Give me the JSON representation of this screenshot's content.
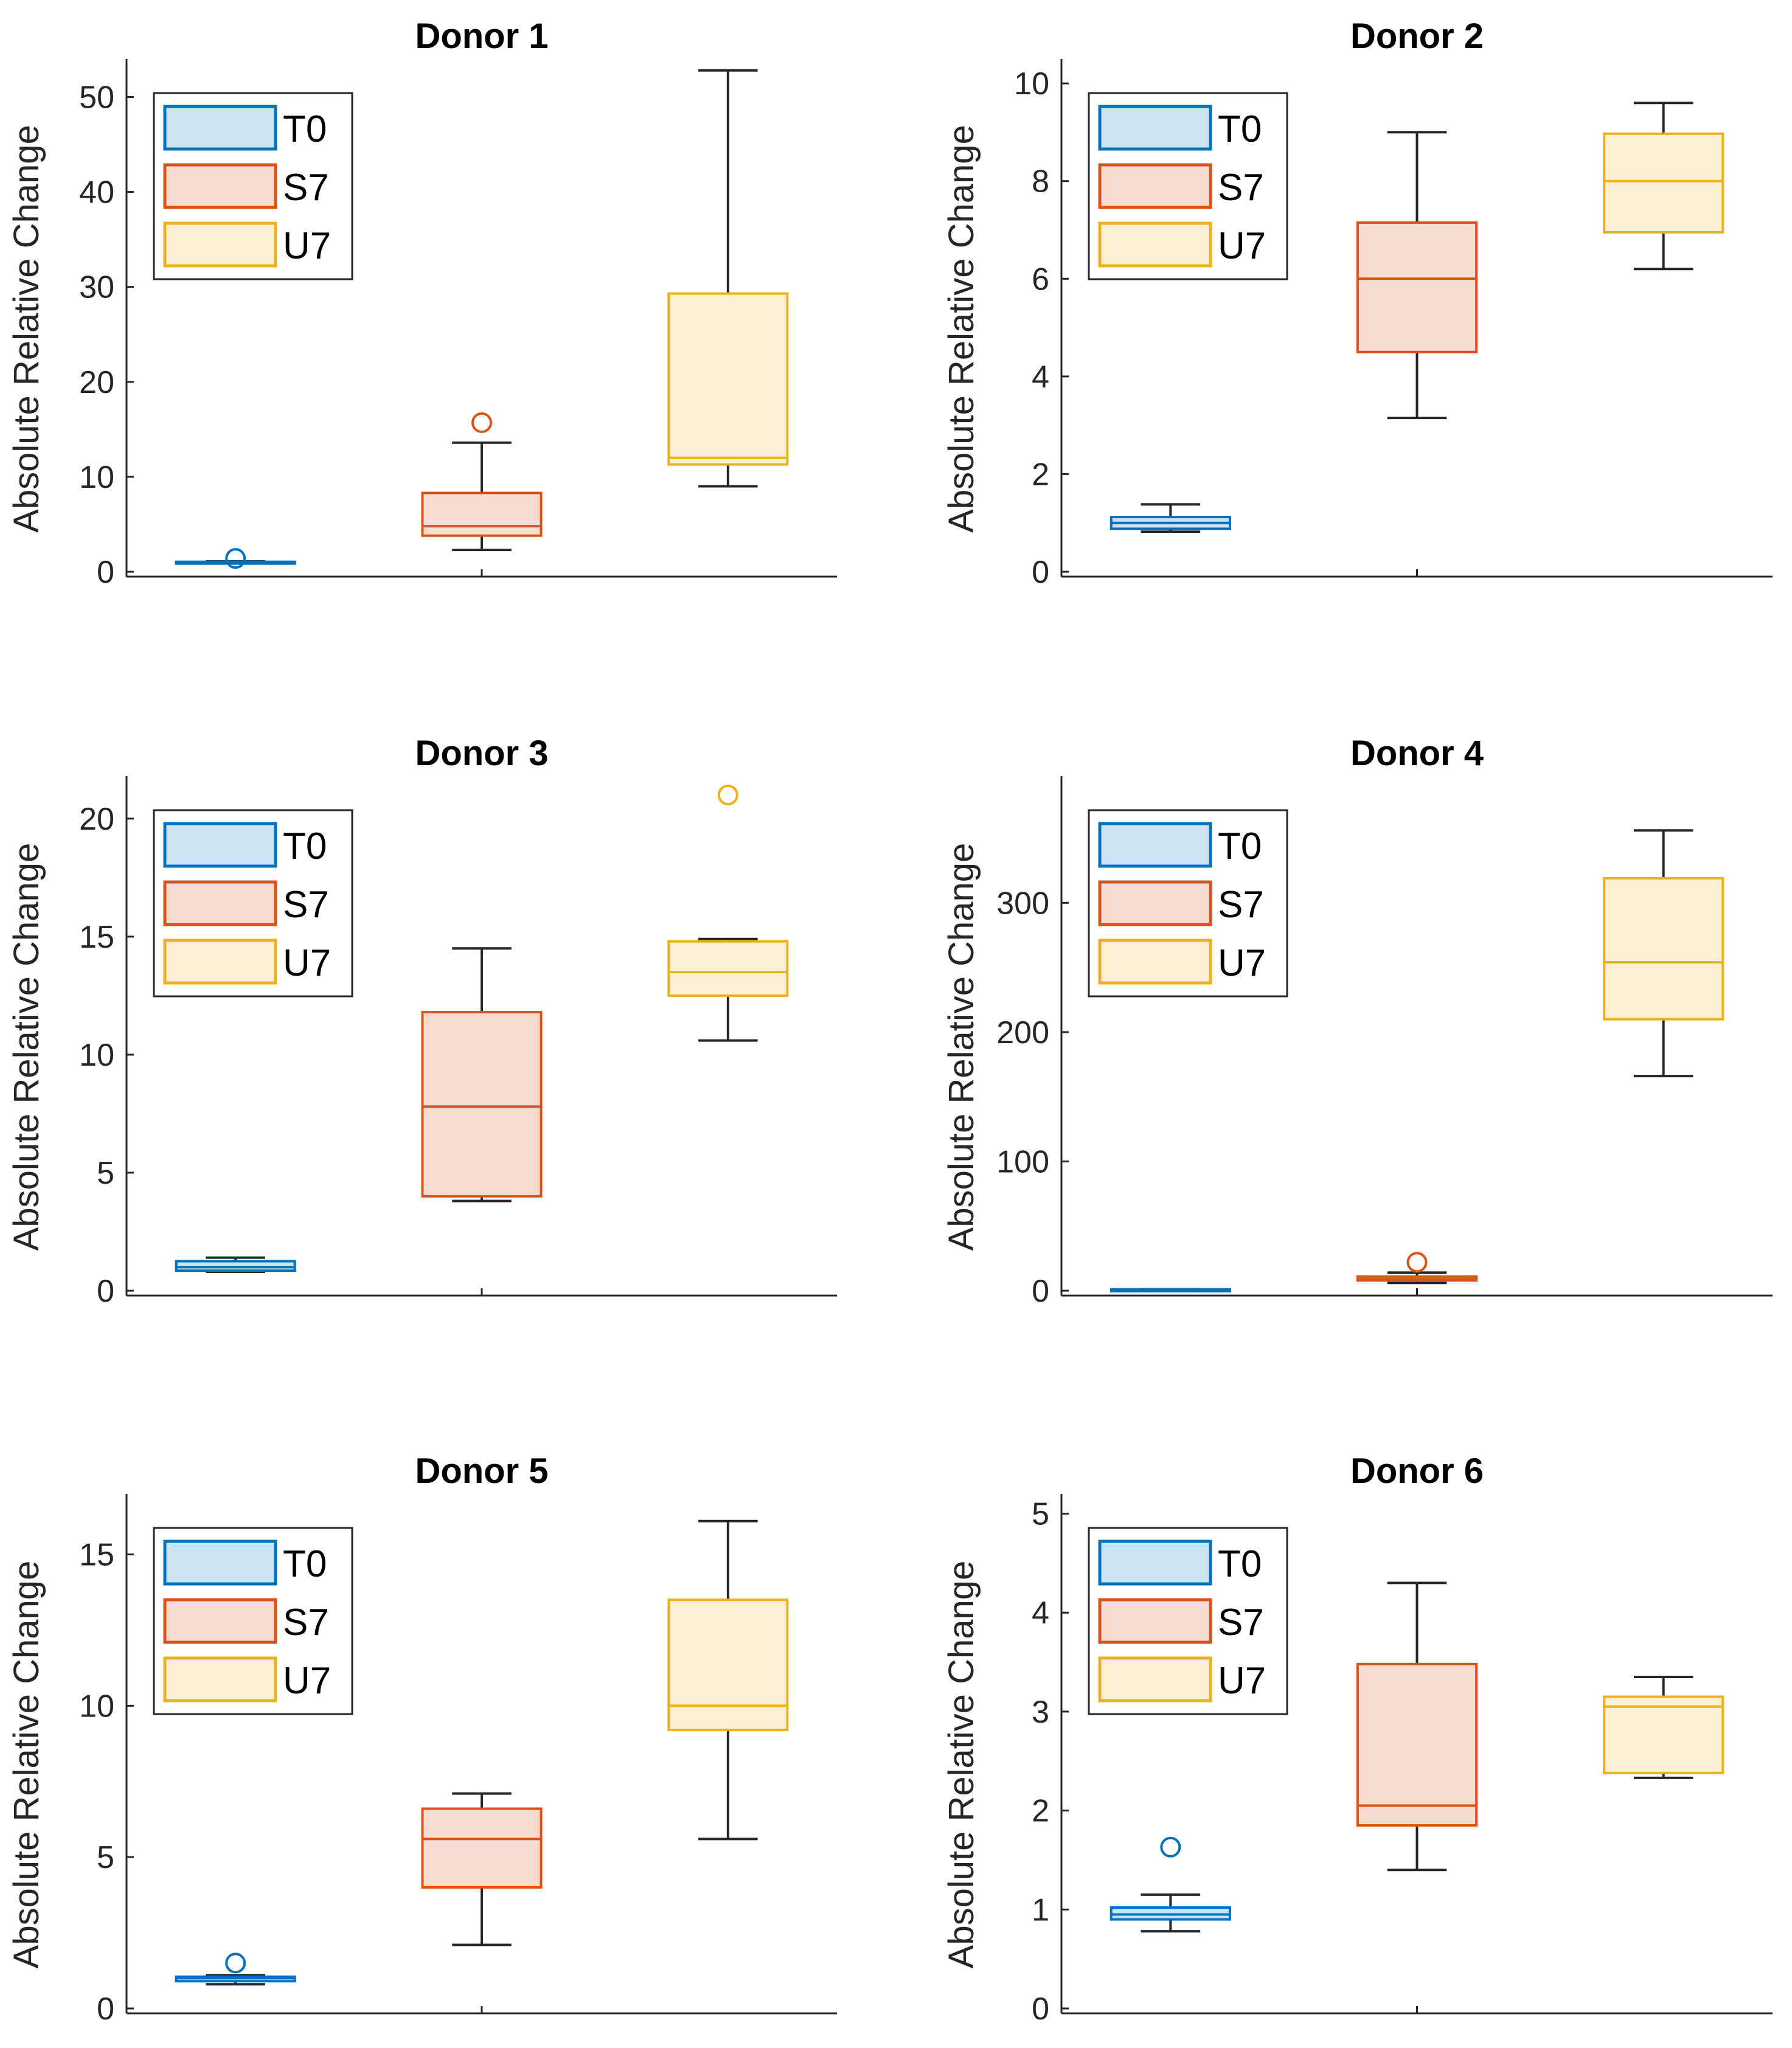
{
  "chart_data": [
    {
      "type": "box",
      "title": "Donor 1",
      "ylabel": "Absolute Relative Change",
      "ylim": [
        0,
        54
      ],
      "yticks": [
        0,
        10,
        20,
        30,
        40,
        50
      ],
      "legend": {
        "placement": "top-left",
        "entries": [
          "T0",
          "S7",
          "U7"
        ]
      },
      "series": [
        {
          "name": "T0",
          "min": 0.9,
          "q1": 0.95,
          "median": 1.0,
          "q3": 1.05,
          "max": 1.1,
          "outliers": [
            1.4
          ]
        },
        {
          "name": "S7",
          "min": 2.3,
          "q1": 3.8,
          "median": 4.8,
          "q3": 8.3,
          "max": 13.6,
          "outliers": [
            15.7
          ]
        },
        {
          "name": "U7",
          "min": 9.0,
          "q1": 11.3,
          "median": 12.0,
          "q3": 29.3,
          "max": 52.8,
          "outliers": []
        }
      ]
    },
    {
      "type": "box",
      "title": "Donor 2",
      "ylabel": "Absolute Relative Change",
      "ylim": [
        0,
        10.5
      ],
      "yticks": [
        0,
        2,
        4,
        6,
        8,
        10
      ],
      "legend": {
        "placement": "top-left",
        "entries": [
          "T0",
          "S7",
          "U7"
        ]
      },
      "series": [
        {
          "name": "T0",
          "min": 0.82,
          "q1": 0.88,
          "median": 1.0,
          "q3": 1.12,
          "max": 1.38,
          "outliers": []
        },
        {
          "name": "S7",
          "min": 3.15,
          "q1": 4.5,
          "median": 6.0,
          "q3": 7.15,
          "max": 9.0,
          "outliers": []
        },
        {
          "name": "U7",
          "min": 6.2,
          "q1": 6.95,
          "median": 8.0,
          "q3": 8.97,
          "max": 9.6,
          "outliers": []
        }
      ]
    },
    {
      "type": "box",
      "title": "Donor 3",
      "ylabel": "Absolute Relative Change",
      "ylim": [
        0,
        21.8
      ],
      "yticks": [
        0,
        5,
        10,
        15,
        20
      ],
      "legend": {
        "placement": "top-left",
        "entries": [
          "T0",
          "S7",
          "U7"
        ]
      },
      "series": [
        {
          "name": "T0",
          "min": 0.8,
          "q1": 0.85,
          "median": 1.0,
          "q3": 1.25,
          "max": 1.4,
          "outliers": []
        },
        {
          "name": "S7",
          "min": 3.8,
          "q1": 4.0,
          "median": 7.8,
          "q3": 11.8,
          "max": 14.5,
          "outliers": []
        },
        {
          "name": "U7",
          "min": 10.6,
          "q1": 12.5,
          "median": 13.5,
          "q3": 14.8,
          "max": 14.9,
          "outliers": [
            21.0
          ]
        }
      ]
    },
    {
      "type": "box",
      "title": "Donor 4",
      "ylabel": "Absolute Relative Change",
      "ylim": [
        0,
        398
      ],
      "yticks": [
        0,
        100,
        200,
        300
      ],
      "legend": {
        "placement": "top-left",
        "entries": [
          "T0",
          "S7",
          "U7"
        ]
      },
      "series": [
        {
          "name": "T0",
          "min": 0.8,
          "q1": 0.9,
          "median": 1.0,
          "q3": 1.1,
          "max": 1.2,
          "outliers": []
        },
        {
          "name": "S7",
          "min": 6,
          "q1": 8,
          "median": 10,
          "q3": 11,
          "max": 14,
          "outliers": [
            22
          ]
        },
        {
          "name": "U7",
          "min": 166,
          "q1": 210,
          "median": 254,
          "q3": 319,
          "max": 356,
          "outliers": []
        }
      ]
    },
    {
      "type": "box",
      "title": "Donor 5",
      "ylabel": "Absolute Relative Change",
      "ylim": [
        0,
        17
      ],
      "yticks": [
        0,
        5,
        10,
        15
      ],
      "legend": {
        "placement": "top-left",
        "entries": [
          "T0",
          "S7",
          "U7"
        ]
      },
      "series": [
        {
          "name": "T0",
          "min": 0.8,
          "q1": 0.9,
          "median": 1.0,
          "q3": 1.05,
          "max": 1.1,
          "outliers": [
            1.5
          ]
        },
        {
          "name": "S7",
          "min": 2.1,
          "q1": 4.0,
          "median": 5.6,
          "q3": 6.6,
          "max": 7.1,
          "outliers": []
        },
        {
          "name": "U7",
          "min": 5.6,
          "q1": 9.2,
          "median": 10.0,
          "q3": 13.5,
          "max": 16.1,
          "outliers": []
        }
      ]
    },
    {
      "type": "box",
      "title": "Donor 6",
      "ylabel": "Absolute Relative Change",
      "ylim": [
        0,
        5.2
      ],
      "yticks": [
        0,
        1,
        2,
        3,
        4,
        5
      ],
      "legend": {
        "placement": "top-left",
        "entries": [
          "T0",
          "S7",
          "U7"
        ]
      },
      "series": [
        {
          "name": "T0",
          "min": 0.78,
          "q1": 0.9,
          "median": 0.95,
          "q3": 1.02,
          "max": 1.15,
          "outliers": [
            1.63
          ]
        },
        {
          "name": "S7",
          "min": 1.4,
          "q1": 1.85,
          "median": 2.05,
          "q3": 3.48,
          "max": 4.3,
          "outliers": []
        },
        {
          "name": "U7",
          "min": 2.33,
          "q1": 2.38,
          "median": 3.05,
          "q3": 3.15,
          "max": 3.35,
          "outliers": []
        }
      ]
    }
  ],
  "colors": {
    "T0": {
      "edge": "#0072bd",
      "fill": "#cce3f2"
    },
    "S7": {
      "edge": "#d95319",
      "fill": "#f7dcd1"
    },
    "U7": {
      "edge": "#edb120",
      "fill": "#fbf0d2"
    },
    "whisker": "#262626",
    "axis": "#262626"
  }
}
